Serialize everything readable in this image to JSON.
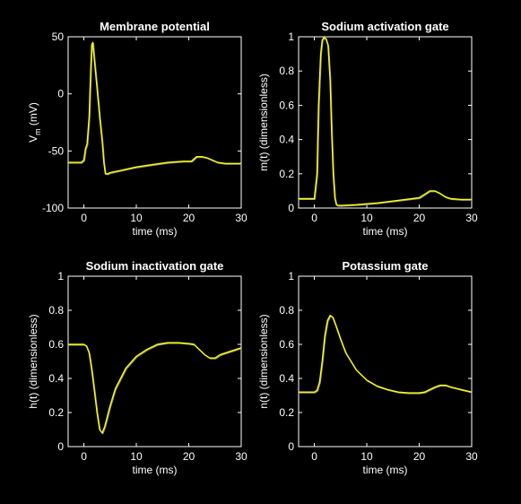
{
  "colors": {
    "background": "#000000",
    "axes": "#ffffff",
    "trace": "#ffff00",
    "trace_shadow": "#8a8a8a"
  },
  "chart_data": [
    {
      "type": "line",
      "title": "Membrane potential",
      "xlabel": "time (ms)",
      "ylabel_main": "V",
      "ylabel_sub": "m",
      "ylabel_rest": " (mV)",
      "xlim": [
        -3,
        30
      ],
      "ylim": [
        -100,
        50
      ],
      "xticks": [
        0,
        10,
        20,
        30
      ],
      "yticks": [
        -100,
        -50,
        0,
        50
      ],
      "series": [
        {
          "x": [
            -3,
            -0.5,
            0,
            0.3,
            0.6,
            1.0,
            1.3,
            1.5,
            1.7,
            2.0,
            2.5,
            3.0,
            3.5,
            3.8,
            4.1,
            4.5,
            5,
            7,
            10,
            13,
            16,
            19,
            20.5,
            21,
            21.5,
            22.5,
            23.5,
            24.5,
            25.5,
            27,
            28.5,
            30
          ],
          "y": [
            -60,
            -60,
            -58,
            -48,
            -44,
            -20,
            20,
            43,
            45,
            30,
            5,
            -20,
            -42,
            -60,
            -70,
            -70,
            -69,
            -67,
            -64,
            -62,
            -60,
            -59,
            -59,
            -57,
            -55,
            -55,
            -56,
            -58,
            -60,
            -61,
            -61,
            -61
          ]
        }
      ]
    },
    {
      "type": "line",
      "title": "Sodium activation gate",
      "xlabel": "time (ms)",
      "ylabel": "m(t)  (dimensionless)",
      "xlim": [
        -3,
        30
      ],
      "ylim": [
        0,
        1
      ],
      "xticks": [
        0,
        10,
        20,
        30
      ],
      "yticks": [
        0,
        0.2,
        0.4,
        0.6,
        0.8,
        1
      ],
      "series": [
        {
          "x": [
            -3,
            0,
            0.5,
            0.8,
            1.2,
            1.5,
            1.8,
            2.2,
            2.6,
            3.0,
            3.3,
            3.6,
            3.9,
            4.2,
            4.5,
            5,
            8,
            12,
            16,
            20,
            21,
            22,
            23,
            24,
            25,
            26,
            28,
            30
          ],
          "y": [
            0.055,
            0.055,
            0.2,
            0.6,
            0.9,
            0.98,
            0.995,
            0.99,
            0.95,
            0.75,
            0.45,
            0.2,
            0.06,
            0.02,
            0.015,
            0.015,
            0.02,
            0.03,
            0.045,
            0.06,
            0.08,
            0.1,
            0.1,
            0.085,
            0.065,
            0.055,
            0.05,
            0.05
          ]
        }
      ]
    },
    {
      "type": "line",
      "title": "Sodium inactivation gate",
      "xlabel": "time (ms)",
      "ylabel": "h(t)  (dimensionless)",
      "xlim": [
        -3,
        30
      ],
      "ylim": [
        0,
        1
      ],
      "xticks": [
        0,
        10,
        20,
        30
      ],
      "yticks": [
        0,
        0.2,
        0.4,
        0.6,
        0.8,
        1
      ],
      "series": [
        {
          "x": [
            -3,
            0,
            0.5,
            1,
            1.5,
            2,
            2.5,
            3,
            3.5,
            4,
            5,
            6,
            8,
            10,
            12,
            14,
            16,
            18,
            20,
            21,
            22,
            23,
            24,
            25,
            26,
            28,
            30
          ],
          "y": [
            0.6,
            0.6,
            0.59,
            0.55,
            0.45,
            0.33,
            0.2,
            0.1,
            0.08,
            0.12,
            0.24,
            0.34,
            0.46,
            0.53,
            0.57,
            0.6,
            0.61,
            0.61,
            0.605,
            0.6,
            0.57,
            0.54,
            0.52,
            0.52,
            0.54,
            0.56,
            0.58
          ]
        }
      ]
    },
    {
      "type": "line",
      "title": "Potassium gate",
      "xlabel": "time (ms)",
      "ylabel": "n(t)  (dimensionless)",
      "xlim": [
        -3,
        30
      ],
      "ylim": [
        0,
        1
      ],
      "xticks": [
        0,
        10,
        20,
        30
      ],
      "yticks": [
        0,
        0.2,
        0.4,
        0.6,
        0.8,
        1
      ],
      "series": [
        {
          "x": [
            -3,
            0,
            0.5,
            1,
            1.5,
            2,
            2.5,
            3,
            3.5,
            4,
            5,
            6,
            8,
            10,
            12,
            14,
            16,
            18,
            20,
            21,
            22,
            23,
            24,
            25,
            26,
            28,
            30
          ],
          "y": [
            0.32,
            0.32,
            0.33,
            0.38,
            0.5,
            0.65,
            0.74,
            0.77,
            0.76,
            0.72,
            0.63,
            0.55,
            0.45,
            0.39,
            0.355,
            0.335,
            0.32,
            0.315,
            0.315,
            0.32,
            0.335,
            0.35,
            0.36,
            0.36,
            0.35,
            0.335,
            0.32
          ]
        }
      ]
    }
  ]
}
